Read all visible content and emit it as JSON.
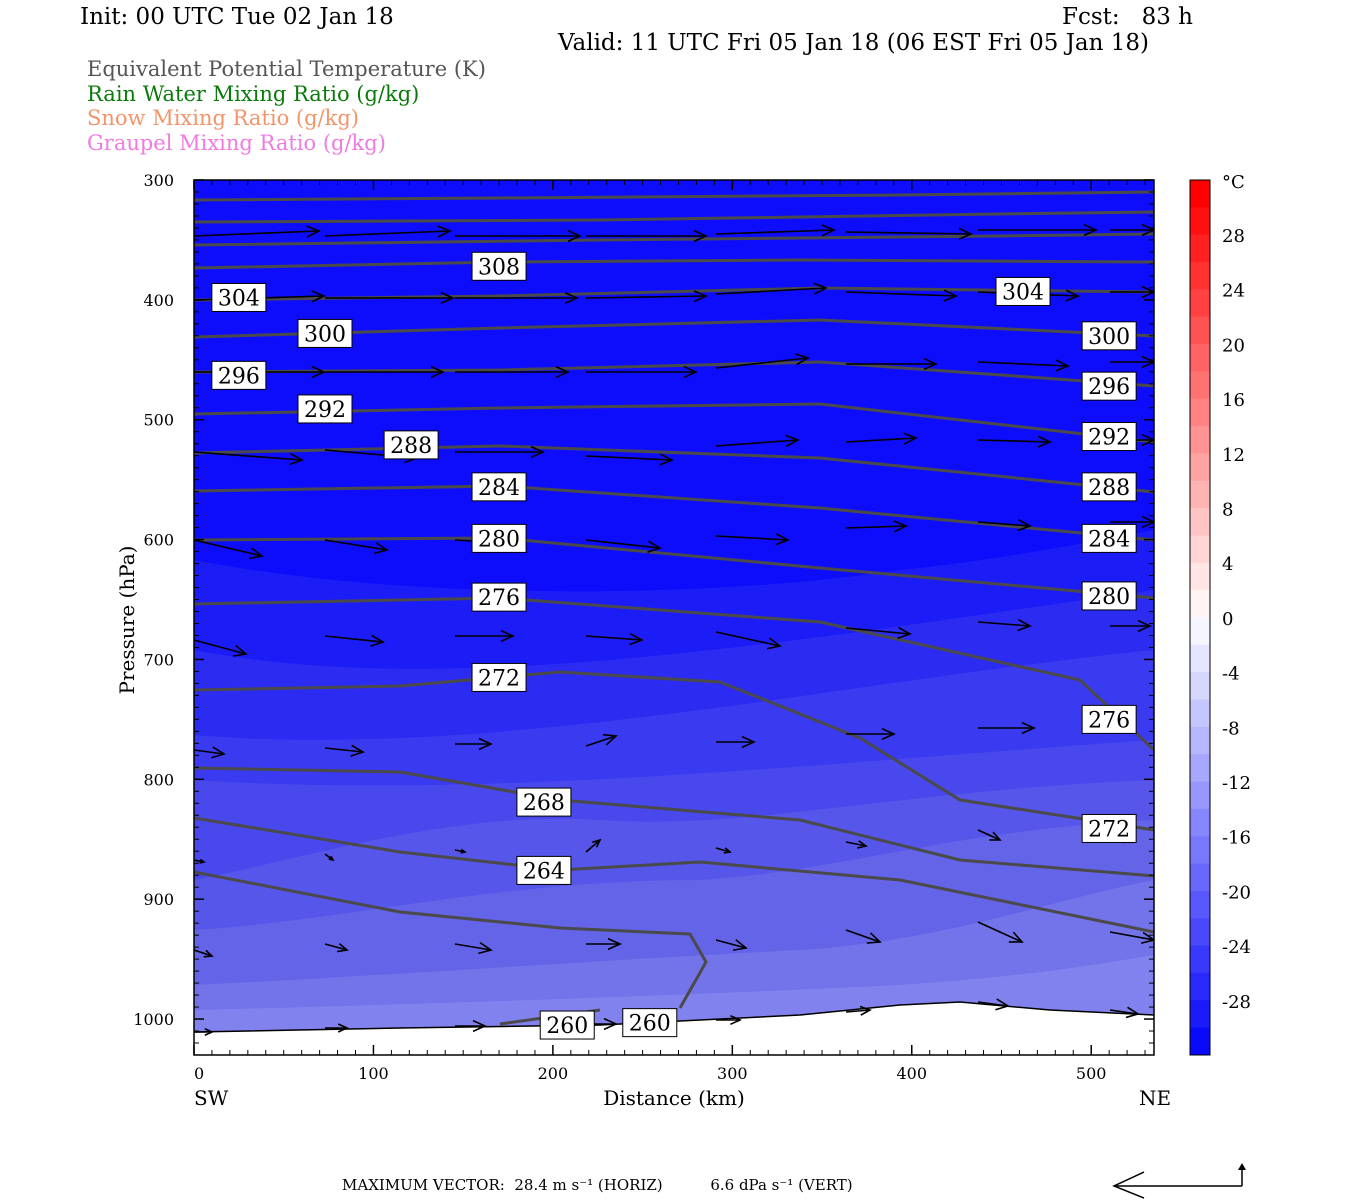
{
  "header": {
    "init": "Init: 00 UTC Tue 02 Jan 18",
    "fcst": "Fcst:   83 h",
    "valid": "Valid: 11 UTC Fri 05 Jan 18 (06 EST Fri 05 Jan 18)"
  },
  "legend": [
    {
      "label": "Equivalent Potential Temperature (K)",
      "color": "#555555"
    },
    {
      "label": "Rain Water Mixing Ratio (g/kg)",
      "color": "#0a7a0a"
    },
    {
      "label": "Snow Mixing Ratio (g/kg)",
      "color": "#f4946a"
    },
    {
      "label": "Graupel Mixing Ratio (g/kg)",
      "color": "#f07ae0"
    }
  ],
  "chart_data": {
    "type": "cross-section",
    "xlabel": "Distance (km)",
    "ylabel": "Pressure (hPa)",
    "x_ticks": [
      0,
      100,
      200,
      300,
      400,
      500
    ],
    "y_ticks": [
      300,
      400,
      500,
      600,
      700,
      800,
      900,
      1000
    ],
    "xlim": [
      0,
      535
    ],
    "ylim": [
      300,
      1030
    ],
    "left_end_label": "SW",
    "right_end_label": "NE",
    "colorbar": {
      "unit": "°C",
      "tick_labels": [
        "28",
        "24",
        "20",
        "16",
        "12",
        "8",
        "4",
        "0",
        "-4",
        "-8",
        "-12",
        "-16",
        "-20",
        "-24",
        "-28"
      ]
    },
    "contours_label": "Equivalent Potential Temperature (K)",
    "contour_labels": [
      {
        "text": "308",
        "x": 170,
        "p": 372
      },
      {
        "text": "304",
        "x": 25,
        "p": 398
      },
      {
        "text": "304",
        "x": 462,
        "p": 393
      },
      {
        "text": "300",
        "x": 73,
        "p": 428
      },
      {
        "text": "300",
        "x": 510,
        "p": 430
      },
      {
        "text": "296",
        "x": 25,
        "p": 463
      },
      {
        "text": "296",
        "x": 510,
        "p": 472
      },
      {
        "text": "292",
        "x": 73,
        "p": 491
      },
      {
        "text": "292",
        "x": 510,
        "p": 514
      },
      {
        "text": "288",
        "x": 121,
        "p": 521
      },
      {
        "text": "288",
        "x": 510,
        "p": 556
      },
      {
        "text": "284",
        "x": 170,
        "p": 556
      },
      {
        "text": "284",
        "x": 510,
        "p": 599
      },
      {
        "text": "280",
        "x": 170,
        "p": 599
      },
      {
        "text": "280",
        "x": 510,
        "p": 647
      },
      {
        "text": "276",
        "x": 170,
        "p": 648
      },
      {
        "text": "276",
        "x": 510,
        "p": 750
      },
      {
        "text": "272",
        "x": 170,
        "p": 715
      },
      {
        "text": "272",
        "x": 510,
        "p": 841
      },
      {
        "text": "268",
        "x": 195,
        "p": 819
      },
      {
        "text": "264",
        "x": 195,
        "p": 876
      },
      {
        "text": "260",
        "x": 208,
        "p": 1005
      },
      {
        "text": "260",
        "x": 254,
        "p": 1003
      }
    ],
    "max_vector_text": "MAXIMUM VECTOR:  28.4 m s⁻¹ (HORIZ)          6.6 dPa s⁻¹ (VERT)"
  }
}
